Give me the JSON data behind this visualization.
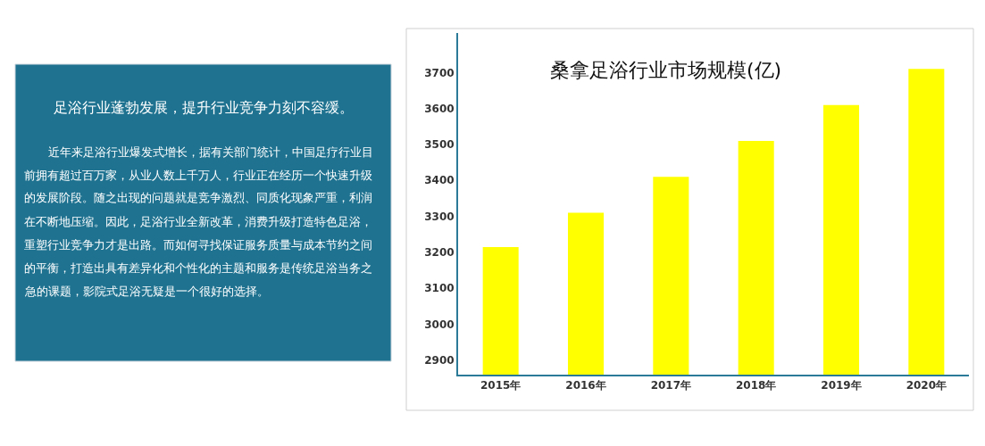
{
  "chart_data": [
    {
      "type": "other",
      "title": "足浴行业蓬勃发展，提升行业竞争力刻不容缓。",
      "annotations": [
        "近年来足浴行业爆发式增长，据有关部门统计，中国足疗行业目前拥有超过百万家，从业人数上千万人，行业正在经历一个快速升级的发展阶段。随之出现的问题就是竞争激烈、同质化现象严重，利润在不断地压缩。因此，足浴行业全新改革，消费升级打造特色足浴，重塑行业竞争力才是出路。而如何寻找保证服务质量与成本节约之间的平衡，打造出具有差异化和个性化的主题和服务是传统足浴当务之急的课题，影院式足浴无疑是一个很好的选择。"
      ]
    },
    {
      "type": "bar",
      "title": "桑拿足浴行业市场规模(亿)",
      "categories": [
        "2015年",
        "2016年",
        "2017年",
        "2018年",
        "2019年",
        "2020年"
      ],
      "values": [
        3215,
        3310,
        3410,
        3510,
        3610,
        3710
      ],
      "color": "#ffff00",
      "ylim": [
        2860,
        3810
      ],
      "yticks": [
        2900,
        3000,
        3100,
        3200,
        3300,
        3400,
        3500,
        3600,
        3700
      ]
    }
  ]
}
